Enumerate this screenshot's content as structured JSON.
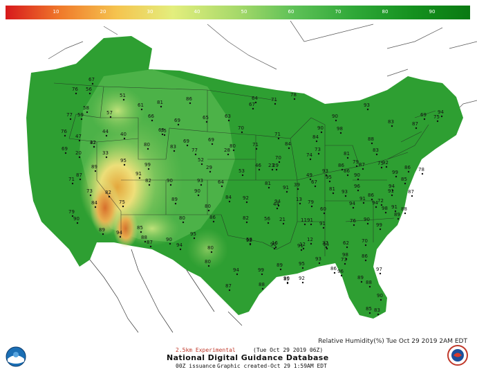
{
  "colorbar": {
    "labels": [
      "10",
      "20",
      "30",
      "40",
      "50",
      "60",
      "70",
      "80",
      "90"
    ],
    "stops": [
      "#d7191c",
      "#f07b2b",
      "#f5c44f",
      "#e3ee7d",
      "#a6d96a",
      "#5ec157",
      "#2fa838",
      "#14901e",
      "#0a7a12"
    ]
  },
  "map": {
    "points": [
      {
        "v": "76"
      },
      {
        "v": "67"
      },
      {
        "v": "56"
      },
      {
        "v": "58"
      },
      {
        "v": "77"
      },
      {
        "v": "59"
      },
      {
        "v": "57"
      },
      {
        "v": "51"
      },
      {
        "v": "61"
      },
      {
        "v": "81"
      },
      {
        "v": "86"
      },
      {
        "v": "66"
      },
      {
        "v": "69"
      },
      {
        "v": "64"
      },
      {
        "v": "71"
      },
      {
        "v": "78"
      },
      {
        "v": "76"
      },
      {
        "v": "47"
      },
      {
        "v": "42"
      },
      {
        "v": "44"
      },
      {
        "v": "40"
      },
      {
        "v": "65"
      },
      {
        "v": "75"
      },
      {
        "v": "69"
      },
      {
        "v": "65"
      },
      {
        "v": "63"
      },
      {
        "v": "70"
      },
      {
        "v": "67"
      },
      {
        "v": "90"
      },
      {
        "v": "84"
      },
      {
        "v": "90"
      },
      {
        "v": "98"
      },
      {
        "v": "93"
      },
      {
        "v": "69"
      },
      {
        "v": "20"
      },
      {
        "v": "32"
      },
      {
        "v": "33"
      },
      {
        "v": "80"
      },
      {
        "v": "83"
      },
      {
        "v": "77"
      },
      {
        "v": "69"
      },
      {
        "v": "80"
      },
      {
        "v": "71"
      },
      {
        "v": "84"
      },
      {
        "v": "71"
      },
      {
        "v": "83"
      },
      {
        "v": "87"
      },
      {
        "v": "69"
      },
      {
        "v": "75"
      },
      {
        "v": "94"
      },
      {
        "v": "87"
      },
      {
        "v": "89"
      },
      {
        "v": "95"
      },
      {
        "v": "99"
      },
      {
        "v": "52"
      },
      {
        "v": "29"
      },
      {
        "v": "28"
      },
      {
        "v": "46"
      },
      {
        "v": "70"
      },
      {
        "v": "74"
      },
      {
        "v": "73"
      },
      {
        "v": "93"
      },
      {
        "v": "86"
      },
      {
        "v": "81"
      },
      {
        "v": "79"
      },
      {
        "v": "87"
      },
      {
        "v": "88"
      },
      {
        "v": "83"
      },
      {
        "v": "75"
      },
      {
        "v": "86"
      },
      {
        "v": "71"
      },
      {
        "v": "73"
      },
      {
        "v": "82"
      },
      {
        "v": "91"
      },
      {
        "v": "90"
      },
      {
        "v": "93"
      },
      {
        "v": "64"
      },
      {
        "v": "53"
      },
      {
        "v": "23"
      },
      {
        "v": "29"
      },
      {
        "v": "49"
      },
      {
        "v": "67"
      },
      {
        "v": "95"
      },
      {
        "v": "86"
      },
      {
        "v": "90"
      },
      {
        "v": "92"
      },
      {
        "v": "85"
      },
      {
        "v": "87"
      },
      {
        "v": "99"
      },
      {
        "v": "78"
      },
      {
        "v": "84"
      },
      {
        "v": "75"
      },
      {
        "v": "82"
      },
      {
        "v": "90"
      },
      {
        "v": "81"
      },
      {
        "v": "91"
      },
      {
        "v": "39"
      },
      {
        "v": "13"
      },
      {
        "v": "44"
      },
      {
        "v": "81"
      },
      {
        "v": "93"
      },
      {
        "v": "96"
      },
      {
        "v": "91"
      },
      {
        "v": "94"
      },
      {
        "v": "91"
      },
      {
        "v": "79"
      },
      {
        "v": "89"
      },
      {
        "v": "80"
      },
      {
        "v": "84"
      },
      {
        "v": "92"
      },
      {
        "v": "94"
      },
      {
        "v": "79"
      },
      {
        "v": "60"
      },
      {
        "v": "94"
      },
      {
        "v": "86"
      },
      {
        "v": "72"
      },
      {
        "v": "91"
      },
      {
        "v": "94"
      },
      {
        "v": "98"
      },
      {
        "v": "88"
      },
      {
        "v": "90"
      },
      {
        "v": "85"
      },
      {
        "v": "88"
      },
      {
        "v": "80"
      },
      {
        "v": "86"
      },
      {
        "v": "82"
      },
      {
        "v": "56"
      },
      {
        "v": "21"
      },
      {
        "v": "11"
      },
      {
        "v": "91"
      },
      {
        "v": "91"
      },
      {
        "v": "76"
      },
      {
        "v": "90"
      },
      {
        "v": "99"
      },
      {
        "v": "89"
      },
      {
        "v": "89"
      },
      {
        "v": "94"
      },
      {
        "v": "87"
      },
      {
        "v": "90"
      },
      {
        "v": "94"
      },
      {
        "v": "95"
      },
      {
        "v": "58"
      },
      {
        "v": "16"
      },
      {
        "v": "12"
      },
      {
        "v": "12"
      },
      {
        "v": "37"
      },
      {
        "v": "62"
      },
      {
        "v": "80"
      },
      {
        "v": "92"
      },
      {
        "v": "90"
      },
      {
        "v": "91"
      },
      {
        "v": "94"
      },
      {
        "v": "98"
      },
      {
        "v": "70"
      },
      {
        "v": "80"
      },
      {
        "v": "94"
      },
      {
        "v": "99"
      },
      {
        "v": "89"
      },
      {
        "v": "95"
      },
      {
        "v": "93"
      },
      {
        "v": "73"
      },
      {
        "v": "86"
      },
      {
        "v": "85"
      },
      {
        "v": "92"
      },
      {
        "v": "86"
      },
      {
        "v": "96"
      },
      {
        "v": "89"
      },
      {
        "v": "97"
      },
      {
        "v": "87"
      },
      {
        "v": "88"
      },
      {
        "v": "90"
      },
      {
        "v": "88"
      },
      {
        "v": "90"
      },
      {
        "v": "85"
      },
      {
        "v": "83"
      },
      {
        "v": "86"
      },
      {
        "v": "87"
      },
      {
        "v": "95"
      },
      {
        "v": "87"
      },
      {
        "v": "80"
      },
      {
        "v": "84"
      }
    ]
  },
  "footer": {
    "experimental": "2.5km Experimental",
    "valid_time": "(Tue Oct 29 2019 06Z)",
    "product": "Relative Humidity(%) Tue Oct 29 2019  2AM EDT",
    "database_title": "National Digital Guidance Database",
    "run": "00Z issuance",
    "created": "Graphic created-Oct 29  1:59AM EDT"
  },
  "logos": {
    "left": "noaa-logo",
    "right": "nws-logo"
  }
}
